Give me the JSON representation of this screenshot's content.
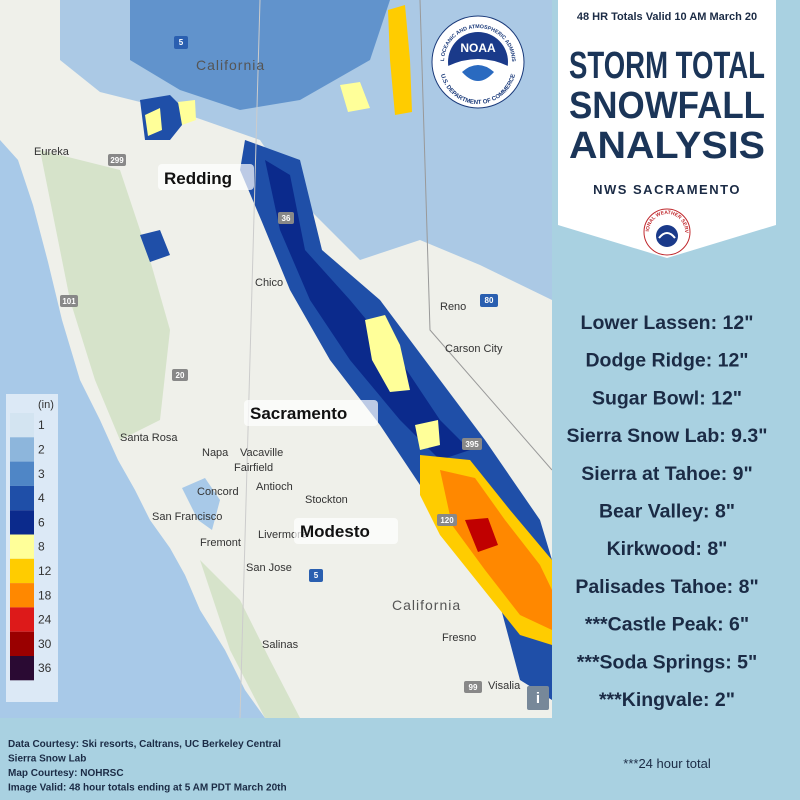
{
  "header": {
    "valid_time": "48 HR Totals Valid 10 AM March 20",
    "title_lines": [
      "STORM TOTAL",
      "SNOWFALL",
      "ANALYSIS"
    ],
    "office": "NWS SACRAMENTO"
  },
  "logos": {
    "noaa": "NOAA",
    "noaa_ring_top": "NATIONAL OCEANIC AND ATMOSPHERIC ADMINISTRATION",
    "noaa_ring_bottom": "U.S. DEPARTMENT OF COMMERCE",
    "nws_ring": "NATIONAL WEATHER SERVICE"
  },
  "map": {
    "places": [
      "California",
      "Eureka",
      "Redding",
      "Chico",
      "Reno",
      "Carson City",
      "Sacramento",
      "Santa Rosa",
      "Napa",
      "Vacaville",
      "Fairfield",
      "Concord",
      "Antioch",
      "Stockton",
      "San Francisco",
      "Fremont",
      "Livermore",
      "Modesto",
      "San Jose",
      "California",
      "Fresno",
      "Salinas",
      "Visalia"
    ],
    "highways": [
      "5",
      "299",
      "36",
      "101",
      "20",
      "80",
      "395",
      "120",
      "5",
      "99"
    ],
    "info_button": "i"
  },
  "legend": {
    "unit": "(in)",
    "items": [
      {
        "label": 1,
        "color": "#d3e4f1"
      },
      {
        "label": 2,
        "color": "#8db6dc"
      },
      {
        "label": 3,
        "color": "#4f86c6"
      },
      {
        "label": 4,
        "color": "#1f4fa8"
      },
      {
        "label": 6,
        "color": "#0b2a8c"
      },
      {
        "label": 8,
        "color": "#ffff99"
      },
      {
        "label": 12,
        "color": "#ffcc00"
      },
      {
        "label": 18,
        "color": "#ff8800"
      },
      {
        "label": 24,
        "color": "#dd1a1a"
      },
      {
        "label": 30,
        "color": "#9a0000"
      },
      {
        "label": 36,
        "color": "#2a0a33"
      }
    ]
  },
  "reports": [
    "Lower Lassen: 12\"",
    "Dodge Ridge: 12\"",
    "Sugar Bowl: 12\"",
    "Sierra Snow Lab: 9.3\"",
    "Sierra at Tahoe: 9\"",
    "Bear Valley: 8\"",
    "Kirkwood: 8\"",
    "Palisades Tahoe: 8\"",
    "***Castle Peak: 6\"",
    "***Soda Springs: 5\"",
    "***Kingvale: 2\""
  ],
  "footnote": "***24 hour total",
  "credits": [
    "Data Courtesy: Ski resorts, Caltrans, UC Berkeley Central",
    "Sierra Snow Lab",
    "Map Courtesy:  NOHRSC",
    "Image Valid: 48 hour totals ending at 5 AM PDT March 20th"
  ]
}
